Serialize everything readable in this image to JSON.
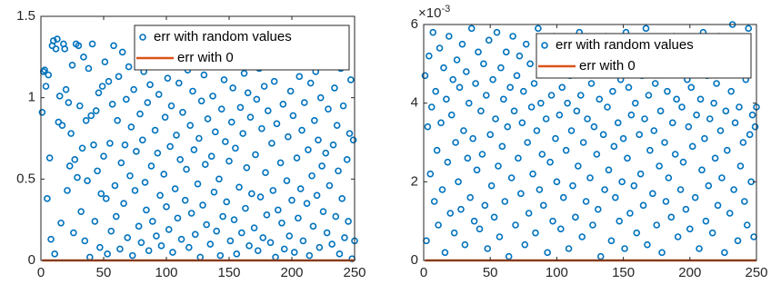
{
  "chart_data": [
    {
      "type": "scatter",
      "legend": "northeast",
      "xlim": [
        0,
        250
      ],
      "xticks": [
        0,
        50,
        100,
        150,
        200,
        250
      ],
      "ylim": [
        0,
        1.5
      ],
      "yticks": [
        0,
        0.5,
        1,
        1.5
      ],
      "series": [
        {
          "name": "err with random values",
          "type": "scatter",
          "color": "#0072BD",
          "x": [
            1,
            2,
            3,
            4,
            5,
            6,
            7,
            8,
            9,
            10,
            11,
            12,
            13,
            14,
            15,
            16,
            17,
            18,
            19,
            20,
            21,
            22,
            23,
            24,
            25,
            26,
            27,
            28,
            29,
            30,
            31,
            32,
            33,
            34,
            35,
            36,
            37,
            38,
            39,
            40,
            41,
            42,
            43,
            44,
            45,
            46,
            47,
            48,
            49,
            50,
            51,
            52,
            53,
            54,
            55,
            56,
            57,
            58,
            59,
            60,
            61,
            62,
            63,
            64,
            65,
            66,
            67,
            68,
            69,
            70,
            71,
            72,
            73,
            74,
            75,
            76,
            77,
            78,
            79,
            80,
            81,
            82,
            83,
            84,
            85,
            86,
            87,
            88,
            89,
            90,
            91,
            92,
            93,
            94,
            95,
            96,
            97,
            98,
            99,
            100,
            101,
            102,
            103,
            104,
            105,
            106,
            107,
            108,
            109,
            110,
            111,
            112,
            113,
            114,
            115,
            116,
            117,
            118,
            119,
            120,
            121,
            122,
            123,
            124,
            125,
            126,
            127,
            128,
            129,
            130,
            131,
            132,
            133,
            134,
            135,
            136,
            137,
            138,
            139,
            140,
            141,
            142,
            143,
            144,
            145,
            146,
            147,
            148,
            149,
            150,
            151,
            152,
            153,
            154,
            155,
            156,
            157,
            158,
            159,
            160,
            161,
            162,
            163,
            164,
            165,
            166,
            167,
            168,
            169,
            170,
            171,
            172,
            173,
            174,
            175,
            176,
            177,
            178,
            179,
            180,
            181,
            182,
            183,
            184,
            185,
            186,
            187,
            188,
            189,
            190,
            191,
            192,
            193,
            194,
            195,
            196,
            197,
            198,
            199,
            200,
            201,
            202,
            203,
            204,
            205,
            206,
            207,
            208,
            209,
            210,
            211,
            212,
            213,
            214,
            215,
            216,
            217,
            218,
            219,
            220,
            221,
            222,
            223,
            224,
            225,
            226,
            227,
            228,
            229,
            230,
            231,
            232,
            233,
            234,
            235,
            236,
            237,
            238,
            239,
            240,
            241,
            242,
            243,
            244,
            245,
            246,
            247,
            248,
            249,
            250
          ],
          "values": [
            0.91,
            1.16,
            1.17,
            1.07,
            0.38,
            1.14,
            0.63,
            0.13,
            1.32,
            1.35,
            0.04,
            1.3,
            1.36,
            0.85,
            1.01,
            0.23,
            0.83,
            1.33,
            1.3,
            1.05,
            0.43,
            0.97,
            0.58,
            0.78,
            1.2,
            0.17,
            0.62,
            1.33,
            0.51,
            1.32,
            0.95,
            0.3,
            0.69,
            1.25,
            0.12,
            0.86,
            0.49,
            1.18,
            0.02,
            0.89,
            1.33,
            0.71,
            0.24,
            0.92,
            0.55,
            1.03,
            0.08,
            0.41,
            1.07,
            0.64,
            1.22,
            0.38,
            0.04,
            1.1,
            0.72,
            0.18,
            0.96,
            1.32,
            0.46,
            0.27,
            0.86,
            1.13,
            0.07,
            0.6,
            1.28,
            0.35,
            0.71,
            0.99,
            0.14,
            1.19,
            0.52,
            0.82,
            0.03,
            1.05,
            0.43,
            0.67,
            1.31,
            0.21,
            0.9,
            0.11,
            0.74,
            1.16,
            0.48,
            0.31,
            0.97,
            0.06,
            1.08,
            0.58,
            0.24,
            1.27,
            0.8,
            0.15,
            0.66,
            1.02,
            0.4,
            0.09,
            1.21,
            0.53,
            0.88,
            0.33,
            1.12,
            0.19,
            0.7,
            0.95,
            0.05,
            1.3,
            0.44,
            0.77,
            0.26,
            1.09,
            0.62,
            0.13,
            0.91,
            1.24,
            0.37,
            0.56,
            1.17,
            0.08,
            0.83,
            0.29,
            1.04,
            0.68,
            0.16,
            1.26,
            0.47,
            0.75,
            0.02,
            0.98,
            0.34,
            1.14,
            0.59,
            0.22,
            0.87,
            1.29,
            0.1,
            0.64,
            1.01,
            0.42,
            0.79,
            0.18,
            1.2,
            0.5,
            0.03,
            0.93,
            0.27,
            1.11,
            0.73,
            0.36,
            1.33,
            0.61,
            0.12,
            0.85,
            1.06,
            0.25,
            0.69,
            0.04,
            1.23,
            0.45,
            0.94,
            0.17,
            0.78,
            1.15,
            0.32,
            0.57,
            1.03,
            0.09,
            0.88,
            0.41,
            1.28,
            0.2,
            0.65,
            0.99,
            0.06,
            1.18,
            0.39,
            0.81,
            0.14,
            1.07,
            0.54,
            0.28,
            0.92,
            1.25,
            0.11,
            0.72,
            0.43,
            1.1,
            0.02,
            0.84,
            0.31,
            1.19,
            0.6,
            0.23,
            0.96,
            0.07,
            1.32,
            0.49,
            0.76,
            0.15,
            1.04,
            0.37,
            0.89,
            0.05,
            1.21,
            0.63,
            0.26,
            1.13,
            0.44,
            0.8,
            0.12,
            0.97,
            1.27,
            0.35,
            0.68,
            0.03,
            1.09,
            0.52,
            0.21,
            0.86,
            1.16,
            0.4,
            0.74,
            0.08,
            1.0,
            0.58,
            0.3,
            1.24,
            0.66,
            0.17,
            0.93,
            0.46,
            1.3,
            0.1,
            0.71,
            1.06,
            0.27,
            0.83,
            0.55,
            0.04,
            1.18,
            0.38,
            0.95,
            0.14,
            1.35,
            0.62,
            0.24,
            0.78,
            1.11,
            0.01,
            0.74,
            0.12
          ]
        },
        {
          "name": "err with 0",
          "type": "line",
          "color": "#D95319",
          "x": [
            1,
            250
          ],
          "values": [
            0,
            0
          ]
        }
      ]
    },
    {
      "type": "scatter",
      "legend": "northeast",
      "xlim": [
        0,
        250
      ],
      "xticks": [
        0,
        50,
        100,
        150,
        200,
        250
      ],
      "ylim": [
        0,
        0.006
      ],
      "yticks": [
        0,
        {
          "value": 0.002,
          "label": "2"
        },
        {
          "value": 0.004,
          "label": "4"
        },
        {
          "value": 0.006,
          "label": "6"
        }
      ],
      "y_multiplier": {
        "base": "×10",
        "exponent": "-3"
      },
      "series": [
        {
          "name": "err with random values",
          "type": "scatter",
          "color": "#0072BD",
          "x": [
            1,
            2,
            3,
            4,
            5,
            6,
            7,
            8,
            9,
            10,
            11,
            12,
            13,
            14,
            15,
            16,
            17,
            18,
            19,
            20,
            21,
            22,
            23,
            24,
            25,
            26,
            27,
            28,
            29,
            30,
            31,
            32,
            33,
            34,
            35,
            36,
            37,
            38,
            39,
            40,
            41,
            42,
            43,
            44,
            45,
            46,
            47,
            48,
            49,
            50,
            51,
            52,
            53,
            54,
            55,
            56,
            57,
            58,
            59,
            60,
            61,
            62,
            63,
            64,
            65,
            66,
            67,
            68,
            69,
            70,
            71,
            72,
            73,
            74,
            75,
            76,
            77,
            78,
            79,
            80,
            81,
            82,
            83,
            84,
            85,
            86,
            87,
            88,
            89,
            90,
            91,
            92,
            93,
            94,
            95,
            96,
            97,
            98,
            99,
            100,
            101,
            102,
            103,
            104,
            105,
            106,
            107,
            108,
            109,
            110,
            111,
            112,
            113,
            114,
            115,
            116,
            117,
            118,
            119,
            120,
            121,
            122,
            123,
            124,
            125,
            126,
            127,
            128,
            129,
            130,
            131,
            132,
            133,
            134,
            135,
            136,
            137,
            138,
            139,
            140,
            141,
            142,
            143,
            144,
            145,
            146,
            147,
            148,
            149,
            150,
            151,
            152,
            153,
            154,
            155,
            156,
            157,
            158,
            159,
            160,
            161,
            162,
            163,
            164,
            165,
            166,
            167,
            168,
            169,
            170,
            171,
            172,
            173,
            174,
            175,
            176,
            177,
            178,
            179,
            180,
            181,
            182,
            183,
            184,
            185,
            186,
            187,
            188,
            189,
            190,
            191,
            192,
            193,
            194,
            195,
            196,
            197,
            198,
            199,
            200,
            201,
            202,
            203,
            204,
            205,
            206,
            207,
            208,
            209,
            210,
            211,
            212,
            213,
            214,
            215,
            216,
            217,
            218,
            219,
            220,
            221,
            222,
            223,
            224,
            225,
            226,
            227,
            228,
            229,
            230,
            231,
            232,
            233,
            234,
            235,
            236,
            237,
            238,
            239,
            240,
            241,
            242,
            243,
            244,
            245,
            246,
            247,
            248,
            249,
            250
          ],
          "values": [
            0.0047,
            0.0005,
            0.0034,
            0.0052,
            0.0022,
            0.0039,
            0.0058,
            0.0015,
            0.0043,
            0.0028,
            0.0009,
            0.0054,
            0.0035,
            0.0018,
            0.0049,
            0.0002,
            0.0041,
            0.0025,
            0.0057,
            0.0012,
            0.0037,
            0.0046,
            0.0007,
            0.003,
            0.0051,
            0.002,
            0.0044,
            0.0013,
            0.0055,
            0.0033,
            0.0004,
            0.0048,
            0.0026,
            0.004,
            0.0016,
            0.0059,
            0.0031,
            0.001,
            0.0045,
            0.0023,
            0.0053,
            0.0008,
            0.0038,
            0.0027,
            0.005,
            0.0014,
            0.0042,
            0.0003,
            0.0056,
            0.0032,
            0.0019,
            0.0046,
            0.0011,
            0.0036,
            0.0058,
            0.0024,
            0.0006,
            0.0049,
            0.0029,
            0.0041,
            0.0015,
            0.0053,
            0.0034,
            0.0001,
            0.0044,
            0.0021,
            0.0057,
            0.0038,
            0.0009,
            0.0047,
            0.0026,
            0.0052,
            0.0017,
            0.0035,
            0.0043,
            0.0004,
            0.0055,
            0.003,
            0.0012,
            0.005,
            0.0039,
            0.0022,
            0.0045,
            0.0007,
            0.0033,
            0.0059,
            0.0018,
            0.004,
            0.0027,
            0.0014,
            0.0054,
            0.0036,
            0.0002,
            0.0048,
            0.0025,
            0.0042,
            0.001,
            0.0057,
            0.0031,
            0.002,
            0.0051,
            0.0037,
            0.0008,
            0.0044,
            0.0016,
            0.0056,
            0.0028,
            0.004,
            0.0003,
            0.0047,
            0.0033,
            0.0019,
            0.0053,
            0.0011,
            0.0038,
            0.0024,
            0.0058,
            0.0042,
            0.0006,
            0.003,
            0.0049,
            0.0015,
            0.0036,
            0.0052,
            0.0021,
            0.0045,
            0.0009,
            0.0034,
            0.0055,
            0.0027,
            0.0013,
            0.0041,
            0.0001,
            0.0048,
            0.0032,
            0.0018,
            0.0057,
            0.0039,
            0.0023,
            0.005,
            0.0005,
            0.0043,
            0.0029,
            0.0016,
            0.0054,
            0.0035,
            0.001,
            0.0046,
            0.002,
            0.0031,
            0.0003,
            0.0058,
            0.0026,
            0.0044,
            0.0012,
            0.0037,
            0.0051,
            0.0019,
            0.004,
            0.0007,
            0.0055,
            0.0032,
            0.0022,
            0.0047,
            0.0014,
            0.0036,
            0.0059,
            0.0004,
            0.0042,
            0.0028,
            0.0053,
            0.0017,
            0.0033,
            0.0045,
            0.0009,
            0.005,
            0.0024,
            0.0038,
            0.0002,
            0.0056,
            0.003,
            0.0015,
            0.0043,
            0.0021,
            0.0048,
            0.0011,
            0.0035,
            0.0057,
            0.0027,
            0.0041,
            0.0006,
            0.0052,
            0.0018,
            0.0039,
            0.0025,
            0.0054,
            0.0013,
            0.0046,
            0.0034,
            0.0008,
            0.0044,
            0.0029,
            0.0055,
            0.0016,
            0.0037,
            0.0049,
            0.0003,
            0.0041,
            0.0023,
            0.0058,
            0.0031,
            0.001,
            0.0047,
            0.0019,
            0.0036,
            0.0053,
            0.0007,
            0.004,
            0.0026,
            0.0045,
            0.0014,
            0.0057,
            0.0033,
            0.0021,
            0.005,
            0.0002,
            0.0038,
            0.0028,
            0.0052,
            0.0012,
            0.0043,
            0.006,
            0.0018,
            0.0035,
            0.0048,
            0.0005,
            0.0039,
            0.0024,
            0.0056,
            0.003,
            0.0015,
            0.0046,
            0.0009,
            0.0059,
            0.0032,
            0.002,
            0.0037,
            0.0006,
            0.0034,
            0.0039
          ]
        },
        {
          "name": "err with 0",
          "type": "line",
          "color": "#D95319",
          "x": [
            1,
            250
          ],
          "values": [
            0,
            0
          ]
        }
      ]
    }
  ]
}
